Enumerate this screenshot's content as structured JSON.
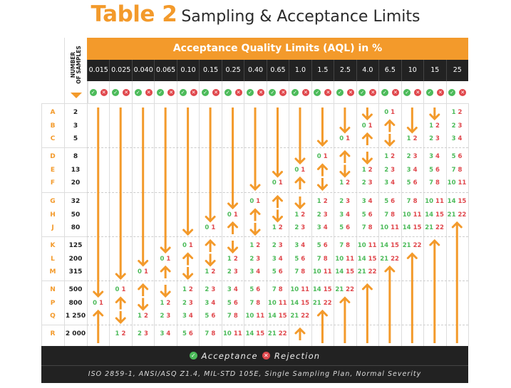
{
  "title": {
    "label": "Table 2",
    "subtitle": "Sampling & Acceptance Limits"
  },
  "header": {
    "band": "Acceptance Quality Limits (AQL) in %",
    "samples_label_line1": "NUMBER",
    "samples_label_line2": "OF SAMPLES",
    "aql": [
      "0.015",
      "0.025",
      "0.040",
      "0.065",
      "0.10",
      "0.15",
      "0.25",
      "0.40",
      "0.65",
      "1.0",
      "1.5",
      "2.5",
      "4.0",
      "6.5",
      "10",
      "15",
      "25"
    ],
    "accept_icon": "check-circle-icon",
    "reject_icon": "x-circle-icon"
  },
  "colors": {
    "brand": "#F39A2B",
    "accept": "#4CBB5A",
    "reject": "#E0474C",
    "dark": "#222222"
  },
  "rows": [
    {
      "letter": "A",
      "samples": "2",
      "cells": [
        "down",
        "down",
        "down",
        "down",
        "down",
        "down",
        "down",
        "down",
        "down",
        "down",
        "down",
        "down",
        "down",
        [
          0,
          1
        ],
        "down",
        "down",
        [
          1,
          2
        ]
      ]
    },
    {
      "letter": "B",
      "samples": "3",
      "cells": [
        "down",
        "down",
        "down",
        "down",
        "down",
        "down",
        "down",
        "down",
        "down",
        "down",
        "down",
        "down",
        [
          0,
          1
        ],
        "up",
        "down",
        [
          1,
          2
        ],
        [
          2,
          3
        ]
      ]
    },
    {
      "letter": "C",
      "samples": "5",
      "cells": [
        "down",
        "down",
        "down",
        "down",
        "down",
        "down",
        "down",
        "down",
        "down",
        "down",
        "down",
        [
          0,
          1
        ],
        "up",
        "down",
        [
          1,
          2
        ],
        [
          2,
          3
        ],
        [
          3,
          4
        ]
      ]
    },
    {
      "letter": "D",
      "samples": "8",
      "cells": [
        "down",
        "down",
        "down",
        "down",
        "down",
        "down",
        "down",
        "down",
        "down",
        "down",
        [
          0,
          1
        ],
        "up",
        "down",
        [
          1,
          2
        ],
        [
          2,
          3
        ],
        [
          3,
          4
        ],
        [
          5,
          6
        ]
      ]
    },
    {
      "letter": "E",
      "samples": "13",
      "cells": [
        "down",
        "down",
        "down",
        "down",
        "down",
        "down",
        "down",
        "down",
        "down",
        [
          0,
          1
        ],
        "up",
        "down",
        [
          1,
          2
        ],
        [
          2,
          3
        ],
        [
          3,
          4
        ],
        [
          5,
          6
        ],
        [
          7,
          8
        ]
      ]
    },
    {
      "letter": "F",
      "samples": "20",
      "cells": [
        "down",
        "down",
        "down",
        "down",
        "down",
        "down",
        "down",
        "down",
        [
          0,
          1
        ],
        "up",
        "down",
        [
          1,
          2
        ],
        [
          2,
          3
        ],
        [
          3,
          4
        ],
        [
          5,
          6
        ],
        [
          7,
          8
        ],
        [
          10,
          11
        ]
      ]
    },
    {
      "letter": "G",
      "samples": "32",
      "cells": [
        "down",
        "down",
        "down",
        "down",
        "down",
        "down",
        "down",
        [
          0,
          1
        ],
        "up",
        "down",
        [
          1,
          2
        ],
        [
          2,
          3
        ],
        [
          3,
          4
        ],
        [
          5,
          6
        ],
        [
          7,
          8
        ],
        [
          10,
          11
        ],
        [
          14,
          15
        ]
      ]
    },
    {
      "letter": "H",
      "samples": "50",
      "cells": [
        "down",
        "down",
        "down",
        "down",
        "down",
        "down",
        [
          0,
          1
        ],
        "up",
        "down",
        [
          1,
          2
        ],
        [
          2,
          3
        ],
        [
          3,
          4
        ],
        [
          5,
          6
        ],
        [
          7,
          8
        ],
        [
          10,
          11
        ],
        [
          14,
          15
        ],
        [
          21,
          22
        ]
      ]
    },
    {
      "letter": "J",
      "samples": "80",
      "cells": [
        "down",
        "down",
        "down",
        "down",
        "down",
        [
          0,
          1
        ],
        "up",
        "down",
        [
          1,
          2
        ],
        [
          2,
          3
        ],
        [
          3,
          4
        ],
        [
          5,
          6
        ],
        [
          7,
          8
        ],
        [
          10,
          11
        ],
        [
          14,
          15
        ],
        [
          21,
          22
        ],
        "up"
      ]
    },
    {
      "letter": "K",
      "samples": "125",
      "cells": [
        "down",
        "down",
        "down",
        "down",
        [
          0,
          1
        ],
        "up",
        "down",
        [
          1,
          2
        ],
        [
          2,
          3
        ],
        [
          3,
          4
        ],
        [
          5,
          6
        ],
        [
          7,
          8
        ],
        [
          10,
          11
        ],
        [
          14,
          15
        ],
        [
          21,
          22
        ],
        "up",
        "up"
      ]
    },
    {
      "letter": "L",
      "samples": "200",
      "cells": [
        "down",
        "down",
        "down",
        [
          0,
          1
        ],
        "up",
        "down",
        [
          1,
          2
        ],
        [
          2,
          3
        ],
        [
          3,
          4
        ],
        [
          5,
          6
        ],
        [
          7,
          8
        ],
        [
          10,
          11
        ],
        [
          14,
          15
        ],
        [
          21,
          22
        ],
        "up",
        "up",
        "up"
      ]
    },
    {
      "letter": "M",
      "samples": "315",
      "cells": [
        "down",
        "down",
        [
          0,
          1
        ],
        "up",
        "down",
        [
          1,
          2
        ],
        [
          2,
          3
        ],
        [
          3,
          4
        ],
        [
          5,
          6
        ],
        [
          7,
          8
        ],
        [
          10,
          11
        ],
        [
          14,
          15
        ],
        [
          21,
          22
        ],
        "up",
        "up",
        "up",
        "up"
      ]
    },
    {
      "letter": "N",
      "samples": "500",
      "cells": [
        "down",
        [
          0,
          1
        ],
        "up",
        "down",
        [
          1,
          2
        ],
        [
          2,
          3
        ],
        [
          3,
          4
        ],
        [
          5,
          6
        ],
        [
          7,
          8
        ],
        [
          10,
          11
        ],
        [
          14,
          15
        ],
        [
          21,
          22
        ],
        "up",
        "up",
        "up",
        "up",
        "up"
      ]
    },
    {
      "letter": "P",
      "samples": "800",
      "cells": [
        [
          0,
          1
        ],
        "up",
        "down",
        [
          1,
          2
        ],
        [
          2,
          3
        ],
        [
          3,
          4
        ],
        [
          5,
          6
        ],
        [
          7,
          8
        ],
        [
          10,
          11
        ],
        [
          14,
          15
        ],
        [
          21,
          22
        ],
        "up",
        "up",
        "up",
        "up",
        "up",
        "up"
      ]
    },
    {
      "letter": "Q",
      "samples": "1 250",
      "cells": [
        "up",
        "down",
        [
          1,
          2
        ],
        [
          2,
          3
        ],
        [
          3,
          4
        ],
        [
          5,
          6
        ],
        [
          7,
          8
        ],
        [
          10,
          11
        ],
        [
          14,
          15
        ],
        [
          21,
          22
        ],
        "up",
        "up",
        "up",
        "up",
        "up",
        "up",
        "up"
      ]
    },
    {
      "letter": "R",
      "samples": "2 000",
      "cells": [
        "up",
        [
          1,
          2
        ],
        [
          2,
          3
        ],
        [
          3,
          4
        ],
        [
          5,
          6
        ],
        [
          7,
          8
        ],
        [
          10,
          11
        ],
        [
          14,
          15
        ],
        [
          21,
          22
        ],
        "up",
        "up",
        "up",
        "up",
        "up",
        "up",
        "up",
        "up"
      ]
    }
  ],
  "footer": {
    "accept_label": "Acceptance",
    "reject_label": "Rejection",
    "citation": "ISO 2859-1, ANSI/ASQ Z1.4, MIL-STD 105E, Single Sampling Plan, Normal Severity"
  }
}
